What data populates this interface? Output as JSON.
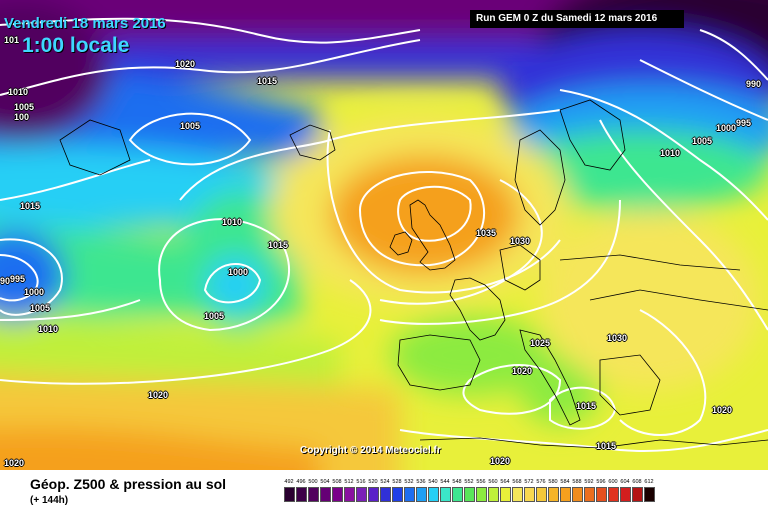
{
  "header": {
    "date": "Vendredi 18 mars 2016",
    "time": "1:00 locale",
    "run": "Run GEM 0 Z du Samedi 12 mars 2016"
  },
  "copyright": "Copyright © 2014 Meteociel.fr",
  "footer": {
    "field_title": "Géop. Z500 & pression au sol",
    "field_sub": "(+ 144h)"
  },
  "legend": [
    {
      "value": "492",
      "color": "#2a0030"
    },
    {
      "value": "496",
      "color": "#3d0048"
    },
    {
      "value": "500",
      "color": "#51005e"
    },
    {
      "value": "504",
      "color": "#650075"
    },
    {
      "value": "508",
      "color": "#7a008a"
    },
    {
      "value": "512",
      "color": "#8a11a0"
    },
    {
      "value": "516",
      "color": "#7a20b8"
    },
    {
      "value": "520",
      "color": "#5a20c8"
    },
    {
      "value": "524",
      "color": "#3030d8"
    },
    {
      "value": "528",
      "color": "#2040e8"
    },
    {
      "value": "532",
      "color": "#1e6ef0"
    },
    {
      "value": "536",
      "color": "#1e9ff5"
    },
    {
      "value": "540",
      "color": "#25cff5"
    },
    {
      "value": "544",
      "color": "#3be6c8"
    },
    {
      "value": "548",
      "color": "#3ee690"
    },
    {
      "value": "552",
      "color": "#59e65a"
    },
    {
      "value": "556",
      "color": "#8ceb3f"
    },
    {
      "value": "560",
      "color": "#bff03a"
    },
    {
      "value": "564",
      "color": "#e8f03a"
    },
    {
      "value": "568",
      "color": "#f5e65a"
    },
    {
      "value": "572",
      "color": "#f8d850"
    },
    {
      "value": "576",
      "color": "#f5c83a"
    },
    {
      "value": "580",
      "color": "#f5b428"
    },
    {
      "value": "584",
      "color": "#f5a01e"
    },
    {
      "value": "588",
      "color": "#f08c1e"
    },
    {
      "value": "592",
      "color": "#eb6e1e"
    },
    {
      "value": "596",
      "color": "#e6501e"
    },
    {
      "value": "600",
      "color": "#e0321e"
    },
    {
      "value": "604",
      "color": "#d21e1e"
    },
    {
      "value": "608",
      "color": "#b41414"
    },
    {
      "value": "612",
      "color": "#1a0000"
    }
  ],
  "isobar_labels": [
    {
      "id": "iso-1",
      "text": "1020"
    },
    {
      "id": "iso-2",
      "text": "1015"
    },
    {
      "id": "iso-3",
      "text": "1010"
    },
    {
      "id": "iso-4",
      "text": "1005"
    },
    {
      "id": "iso-5",
      "text": "100"
    },
    {
      "id": "iso-6",
      "text": "1015"
    },
    {
      "id": "iso-7",
      "text": "1005"
    },
    {
      "id": "iso-8",
      "text": "1010"
    },
    {
      "id": "iso-9",
      "text": "1015"
    },
    {
      "id": "iso-10",
      "text": "1000"
    },
    {
      "id": "iso-11",
      "text": "1005"
    },
    {
      "id": "iso-12",
      "text": "995"
    },
    {
      "id": "iso-13",
      "text": "1000"
    },
    {
      "id": "iso-14",
      "text": "1005"
    },
    {
      "id": "iso-15",
      "text": "1010"
    },
    {
      "id": "iso-16",
      "text": "1020"
    },
    {
      "id": "iso-17",
      "text": "1020"
    },
    {
      "id": "iso-18",
      "text": "1035"
    },
    {
      "id": "iso-19",
      "text": "1030"
    },
    {
      "id": "iso-20",
      "text": "1025"
    },
    {
      "id": "iso-21",
      "text": "1020"
    },
    {
      "id": "iso-22",
      "text": "1030"
    },
    {
      "id": "iso-23",
      "text": "1015"
    },
    {
      "id": "iso-24",
      "text": "1015"
    },
    {
      "id": "iso-25",
      "text": "1020"
    },
    {
      "id": "iso-26",
      "text": "1020"
    },
    {
      "id": "iso-27",
      "text": "1010"
    },
    {
      "id": "iso-28",
      "text": "1005"
    },
    {
      "id": "iso-29",
      "text": "1000"
    },
    {
      "id": "iso-30",
      "text": "995"
    },
    {
      "id": "iso-31",
      "text": "990"
    },
    {
      "id": "iso-32",
      "text": "101"
    },
    {
      "id": "iso-33",
      "text": "90"
    }
  ]
}
